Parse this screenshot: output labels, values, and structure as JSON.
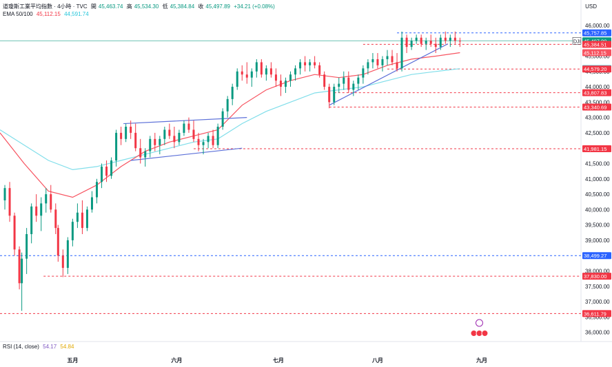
{
  "header": {
    "symbol_line": "道瓊斯工業平均指數 · 4小時 · TVC",
    "open_label": "開",
    "open_value": "45,463.74",
    "high_label": "高",
    "high_value": "45,534.30",
    "low_label": "低",
    "low_value": "45,384.84",
    "close_label": "收",
    "close_value": "45,497.89",
    "change": "+34.21 (+0.08%)",
    "ema_label": "EMA 50/100",
    "ema50_value": "45,112.15",
    "ema100_value": "44,591.74",
    "rsi_label": "RSI (14, close)",
    "rsi_value": "54.17",
    "rsi_ma_value": "54.84"
  },
  "currency": "USD",
  "colors": {
    "up": "#089981",
    "down": "#f23645",
    "ema50": "#f7525f",
    "ema100": "#80deea",
    "trend": "#5b6fd8",
    "level_red": "#f23645",
    "level_blue": "#2962ff",
    "grid": "#f0f3fa"
  },
  "chart_data": {
    "type": "candlestick",
    "ylim": [
      35700,
      46200
    ],
    "y_ticks": [
      36000,
      36500,
      37000,
      37500,
      38000,
      38500,
      39000,
      39500,
      40000,
      40500,
      41000,
      41500,
      42000,
      42500,
      43000,
      43500,
      44000,
      44500,
      45000,
      45500,
      46000
    ],
    "x_ticks": [
      {
        "label": "五月",
        "x": 30
      },
      {
        "label": "六月",
        "x": 73
      },
      {
        "label": "七月",
        "x": 115
      },
      {
        "label": "八月",
        "x": 156
      },
      {
        "label": "九月",
        "x": 199
      }
    ],
    "x_range": [
      0,
      240
    ],
    "candles": [
      [
        2,
        40300,
        40800,
        40000,
        40700
      ],
      [
        4,
        40700,
        40900,
        39600,
        39800
      ],
      [
        6,
        39800,
        39900,
        38500,
        38700
      ],
      [
        8,
        38700,
        38800,
        37400,
        37600
      ],
      [
        9,
        37600,
        38600,
        36700,
        38400
      ],
      [
        11,
        38400,
        39400,
        37900,
        39200
      ],
      [
        13,
        39200,
        40200,
        38900,
        40100
      ],
      [
        15,
        40100,
        40500,
        39600,
        39800
      ],
      [
        17,
        39800,
        40400,
        39300,
        40200
      ],
      [
        19,
        40200,
        40700,
        39900,
        40500
      ],
      [
        21,
        40500,
        40800,
        39900,
        40000
      ],
      [
        23,
        40000,
        40200,
        39200,
        39400
      ],
      [
        24,
        39400,
        39500,
        38300,
        38500
      ],
      [
        26,
        38500,
        38700,
        37800,
        38100
      ],
      [
        28,
        38100,
        39100,
        37900,
        39000
      ],
      [
        30,
        39000,
        39700,
        38800,
        39600
      ],
      [
        32,
        39600,
        40200,
        39400,
        39900
      ],
      [
        34,
        39900,
        40300,
        39200,
        39400
      ],
      [
        36,
        39400,
        40100,
        39300,
        40000
      ],
      [
        38,
        40000,
        40600,
        39900,
        40400
      ],
      [
        40,
        40400,
        41000,
        40200,
        40900
      ],
      [
        42,
        40900,
        41500,
        40700,
        41400
      ],
      [
        44,
        41400,
        41600,
        40900,
        41100
      ],
      [
        46,
        41100,
        41700,
        41000,
        41600
      ],
      [
        48,
        41600,
        42600,
        41400,
        42500
      ],
      [
        50,
        42500,
        42700,
        42100,
        42300
      ],
      [
        52,
        42300,
        42800,
        42200,
        42700
      ],
      [
        54,
        42700,
        42900,
        42300,
        42500
      ],
      [
        56,
        42500,
        42800,
        41900,
        42000
      ],
      [
        58,
        42000,
        42300,
        41500,
        41700
      ],
      [
        60,
        41700,
        42000,
        41400,
        41900
      ],
      [
        62,
        41900,
        42400,
        41700,
        42300
      ],
      [
        64,
        42300,
        42500,
        41900,
        42100
      ],
      [
        66,
        42100,
        42400,
        41800,
        42300
      ],
      [
        68,
        42300,
        42700,
        42100,
        42600
      ],
      [
        70,
        42600,
        42800,
        42300,
        42400
      ],
      [
        72,
        42400,
        42700,
        42000,
        42200
      ],
      [
        74,
        42200,
        42600,
        42100,
        42500
      ],
      [
        76,
        42500,
        42900,
        42400,
        42800
      ],
      [
        78,
        42800,
        43000,
        42500,
        42600
      ],
      [
        80,
        42600,
        42900,
        42200,
        42300
      ],
      [
        82,
        42300,
        42500,
        41900,
        42100
      ],
      [
        84,
        42100,
        42300,
        41800,
        42200
      ],
      [
        86,
        42200,
        42500,
        42000,
        42400
      ],
      [
        88,
        42400,
        42600,
        42000,
        42100
      ],
      [
        90,
        42100,
        42800,
        42000,
        42700
      ],
      [
        92,
        42700,
        43300,
        42600,
        43200
      ],
      [
        94,
        43200,
        43700,
        43000,
        43600
      ],
      [
        96,
        43600,
        44100,
        43400,
        44000
      ],
      [
        98,
        44000,
        44600,
        43900,
        44500
      ],
      [
        100,
        44500,
        44700,
        44200,
        44400
      ],
      [
        102,
        44400,
        44800,
        44100,
        44300
      ],
      [
        104,
        44300,
        44600,
        44000,
        44500
      ],
      [
        106,
        44500,
        44900,
        44300,
        44800
      ],
      [
        108,
        44800,
        44900,
        44300,
        44400
      ],
      [
        110,
        44400,
        44700,
        44200,
        44600
      ],
      [
        112,
        44600,
        44800,
        44300,
        44400
      ],
      [
        114,
        44400,
        44600,
        44000,
        44200
      ],
      [
        116,
        44200,
        44400,
        43700,
        44000
      ],
      [
        118,
        44000,
        44300,
        43800,
        44200
      ],
      [
        120,
        44200,
        44500,
        44000,
        44400
      ],
      [
        122,
        44400,
        44700,
        44200,
        44600
      ],
      [
        124,
        44600,
        44900,
        44400,
        44800
      ],
      [
        126,
        44800,
        45000,
        44500,
        44700
      ],
      [
        128,
        44700,
        44900,
        44500,
        44800
      ],
      [
        130,
        44800,
        45000,
        44600,
        44700
      ],
      [
        132,
        44700,
        44800,
        44300,
        44400
      ],
      [
        134,
        44400,
        44500,
        43900,
        44000
      ],
      [
        136,
        44000,
        44100,
        43300,
        43500
      ],
      [
        138,
        43500,
        44100,
        43400,
        44000
      ],
      [
        140,
        44000,
        44300,
        43800,
        44100
      ],
      [
        142,
        44100,
        44500,
        43900,
        44300
      ],
      [
        144,
        44300,
        44500,
        43800,
        43900
      ],
      [
        146,
        43900,
        44200,
        43700,
        44100
      ],
      [
        148,
        44100,
        44400,
        43900,
        44300
      ],
      [
        150,
        44300,
        44700,
        44100,
        44600
      ],
      [
        152,
        44600,
        44900,
        44400,
        44800
      ],
      [
        154,
        44800,
        45100,
        44600,
        44900
      ],
      [
        156,
        44900,
        45100,
        44600,
        44700
      ],
      [
        158,
        44700,
        45000,
        44500,
        44900
      ],
      [
        160,
        44900,
        45200,
        44700,
        45000
      ],
      [
        162,
        45000,
        45200,
        44700,
        44800
      ],
      [
        164,
        44800,
        45100,
        44500,
        44600
      ],
      [
        166,
        44600,
        45800,
        44500,
        45600
      ],
      [
        168,
        45600,
        45700,
        45100,
        45300
      ],
      [
        170,
        45300,
        45600,
        45200,
        45500
      ],
      [
        172,
        45500,
        45700,
        45400,
        45600
      ],
      [
        174,
        45600,
        45700,
        45300,
        45400
      ],
      [
        176,
        45400,
        45600,
        45200,
        45500
      ],
      [
        178,
        45500,
        45700,
        45300,
        45400
      ],
      [
        180,
        45400,
        45600,
        45100,
        45300
      ],
      [
        182,
        45300,
        45700,
        45200,
        45600
      ],
      [
        184,
        45600,
        45800,
        45400,
        45500
      ],
      [
        186,
        45500,
        45700,
        45300,
        45600
      ],
      [
        188,
        45600,
        45800,
        45400,
        45500
      ],
      [
        190,
        45500,
        45600,
        45300,
        45498
      ]
    ],
    "ema50": [
      [
        0,
        42500
      ],
      [
        10,
        41500
      ],
      [
        20,
        40600
      ],
      [
        30,
        40400
      ],
      [
        40,
        40800
      ],
      [
        50,
        41400
      ],
      [
        60,
        41900
      ],
      [
        70,
        42200
      ],
      [
        80,
        42400
      ],
      [
        90,
        42600
      ],
      [
        100,
        43400
      ],
      [
        110,
        43900
      ],
      [
        120,
        44200
      ],
      [
        130,
        44400
      ],
      [
        140,
        44300
      ],
      [
        150,
        44400
      ],
      [
        160,
        44700
      ],
      [
        170,
        44900
      ],
      [
        180,
        45000
      ],
      [
        190,
        45112
      ]
    ],
    "ema100": [
      [
        0,
        42600
      ],
      [
        10,
        42100
      ],
      [
        20,
        41600
      ],
      [
        30,
        41300
      ],
      [
        40,
        41400
      ],
      [
        50,
        41600
      ],
      [
        60,
        41800
      ],
      [
        70,
        42000
      ],
      [
        80,
        42200
      ],
      [
        90,
        42300
      ],
      [
        100,
        42800
      ],
      [
        110,
        43200
      ],
      [
        120,
        43500
      ],
      [
        130,
        43800
      ],
      [
        140,
        43900
      ],
      [
        150,
        44000
      ],
      [
        160,
        44200
      ],
      [
        170,
        44400
      ],
      [
        180,
        44500
      ],
      [
        190,
        44592
      ]
    ],
    "trendlines": [
      [
        [
          51,
          42800
        ],
        [
          102,
          43000
        ]
      ],
      [
        [
          54,
          41600
        ],
        [
          100,
          42000
        ]
      ],
      [
        [
          136,
          43400
        ],
        [
          185,
          45400
        ]
      ]
    ],
    "levels": [
      {
        "value": 45757.85,
        "label": "45,757.85",
        "color": "#2962ff",
        "style": "dashed",
        "from": 164
      },
      {
        "value": 45497.89,
        "label": "45,497.89",
        "color": "#089981",
        "style": "solid",
        "from": 0
      },
      {
        "value": 45384.51,
        "label": "45,384.51",
        "color": "#f23645",
        "style": "dashed",
        "from": 150
      },
      {
        "value": 45112.15,
        "label": "45,112.15",
        "color": "#f7525f",
        "style": "none",
        "from": 0
      },
      {
        "value": 44591.74,
        "label": "44,591.74",
        "color": "#26c6da",
        "style": "none",
        "from": 0
      },
      {
        "value": 44579.2,
        "label": "44,579.20",
        "color": "#f23645",
        "style": "dashed",
        "from": 160
      },
      {
        "value": 43807.83,
        "label": "43,807.83",
        "color": "#f23645",
        "style": "dashed",
        "from": 138
      },
      {
        "value": 43340.69,
        "label": "43,340.69",
        "color": "#f23645",
        "style": "dashed",
        "from": 136
      },
      {
        "value": 41981.15,
        "label": "41,981.15",
        "color": "#f23645",
        "style": "dashed",
        "from": 80
      },
      {
        "value": 38499.27,
        "label": "38,499.27",
        "color": "#2962ff",
        "style": "dashed",
        "from": 0
      },
      {
        "value": 37830.0,
        "label": "37,830.00",
        "color": "#f23645",
        "style": "dashed",
        "from": 18
      },
      {
        "value": 36611.79,
        "label": "36,611.79",
        "color": "#f23645",
        "style": "dashed",
        "from": 0
      }
    ],
    "dji_tag": "DJI"
  }
}
